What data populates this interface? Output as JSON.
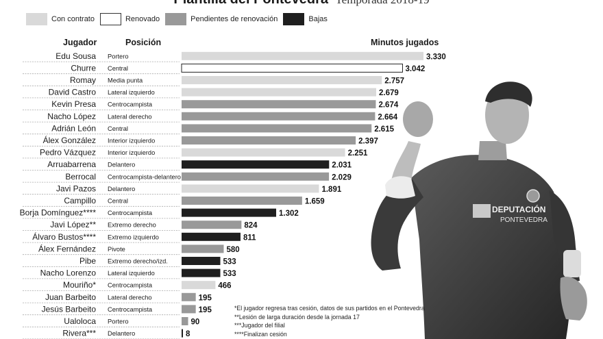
{
  "header": {
    "title": "Plantilla del Pontevedra",
    "season": "Temporada 2018-19"
  },
  "legend": [
    {
      "label": "Con contrato",
      "color": "#d9d9d9"
    },
    {
      "label": "Renovado",
      "color": "#ffffff"
    },
    {
      "label": "Pendientes de renovación",
      "color": "#999999"
    },
    {
      "label": "Bajas",
      "color": "#1f1f1f"
    }
  ],
  "columns": {
    "player": "Jugador",
    "position": "Posición",
    "minutes": "Minutos jugados"
  },
  "status_colors": {
    "contrato": "#d9d9d9",
    "renovado": "#ffffff",
    "pendiente": "#999999",
    "baja": "#1f1f1f"
  },
  "chart_data": {
    "type": "bar",
    "orientation": "horizontal",
    "title": "Plantilla del Pontevedra",
    "subtitle": "Temporada 2018-19",
    "value_label": "Minutos jugados",
    "xlim": [
      0,
      3330
    ],
    "rows": [
      {
        "player": "Edu Sousa",
        "position": "Portero",
        "minutes": 3330,
        "label": "3.330",
        "status": "contrato"
      },
      {
        "player": "Churre",
        "position": "Central",
        "minutes": 3042,
        "label": "3.042",
        "status": "renovado"
      },
      {
        "player": "Romay",
        "position": "Media punta",
        "minutes": 2757,
        "label": "2.757",
        "status": "contrato"
      },
      {
        "player": "David Castro",
        "position": "Lateral izquierdo",
        "minutes": 2679,
        "label": "2.679",
        "status": "contrato"
      },
      {
        "player": "Kevin Presa",
        "position": "Centrocampista",
        "minutes": 2674,
        "label": "2.674",
        "status": "pendiente"
      },
      {
        "player": "Nacho López",
        "position": "Lateral derecho",
        "minutes": 2664,
        "label": "2.664",
        "status": "pendiente"
      },
      {
        "player": "Adrián León",
        "position": "Central",
        "minutes": 2615,
        "label": "2.615",
        "status": "pendiente"
      },
      {
        "player": "Álex González",
        "position": "Interior izquierdo",
        "minutes": 2397,
        "label": "2.397",
        "status": "pendiente"
      },
      {
        "player": "Pedro Vázquez",
        "position": "Interior izquierdo",
        "minutes": 2251,
        "label": "2.251",
        "status": "contrato"
      },
      {
        "player": "Arruabarrena",
        "position": "Delantero",
        "minutes": 2031,
        "label": "2.031",
        "status": "baja"
      },
      {
        "player": "Berrocal",
        "position": "Centrocampista-delantero",
        "minutes": 2029,
        "label": "2.029",
        "status": "pendiente"
      },
      {
        "player": "Javi Pazos",
        "position": "Delantero",
        "minutes": 1891,
        "label": "1.891",
        "status": "contrato"
      },
      {
        "player": "Campillo",
        "position": "Central",
        "minutes": 1659,
        "label": "1.659",
        "status": "pendiente"
      },
      {
        "player": "Borja Domínguez****",
        "position": "Centrocampista",
        "minutes": 1302,
        "label": "1.302",
        "status": "baja"
      },
      {
        "player": "Javi López**",
        "position": "Extremo derecho",
        "minutes": 824,
        "label": "824",
        "status": "pendiente"
      },
      {
        "player": "Álvaro Bustos****",
        "position": "Extremo izquierdo",
        "minutes": 811,
        "label": "811",
        "status": "baja"
      },
      {
        "player": "Álex Fernández",
        "position": "Pivote",
        "minutes": 580,
        "label": "580",
        "status": "pendiente"
      },
      {
        "player": "Pibe",
        "position": "Extremo derecho/izd.",
        "minutes": 533,
        "label": "533",
        "status": "baja"
      },
      {
        "player": "Nacho Lorenzo",
        "position": "Lateral izquierdo",
        "minutes": 533,
        "label": "533",
        "status": "baja"
      },
      {
        "player": "Mouriño*",
        "position": "Centrocampista",
        "minutes": 466,
        "label": "466",
        "status": "contrato"
      },
      {
        "player": "Juan Barbeito",
        "position": "Lateral derecho",
        "minutes": 195,
        "label": "195",
        "status": "pendiente"
      },
      {
        "player": "Jesús Barbeito",
        "position": "Centrocampista",
        "minutes": 195,
        "label": "195",
        "status": "pendiente"
      },
      {
        "player": "Ualoloca",
        "position": "Portero",
        "minutes": 90,
        "label": "90",
        "status": "pendiente"
      },
      {
        "player": "Rivera***",
        "position": "Delantero",
        "minutes": 8,
        "label": "8",
        "status": "baja"
      }
    ]
  },
  "footnotes": [
    "*El jugador regresa tras cesión, datos de sus partidos en el Pontevedra",
    "**Lesión de larga duración desde la jornada 17",
    "***Jugador del filial",
    "****Finalizan cesión"
  ],
  "photo": {
    "jersey_text_1": "DEPUTACIÓN",
    "jersey_text_2": "PONTEVEDRA"
  }
}
